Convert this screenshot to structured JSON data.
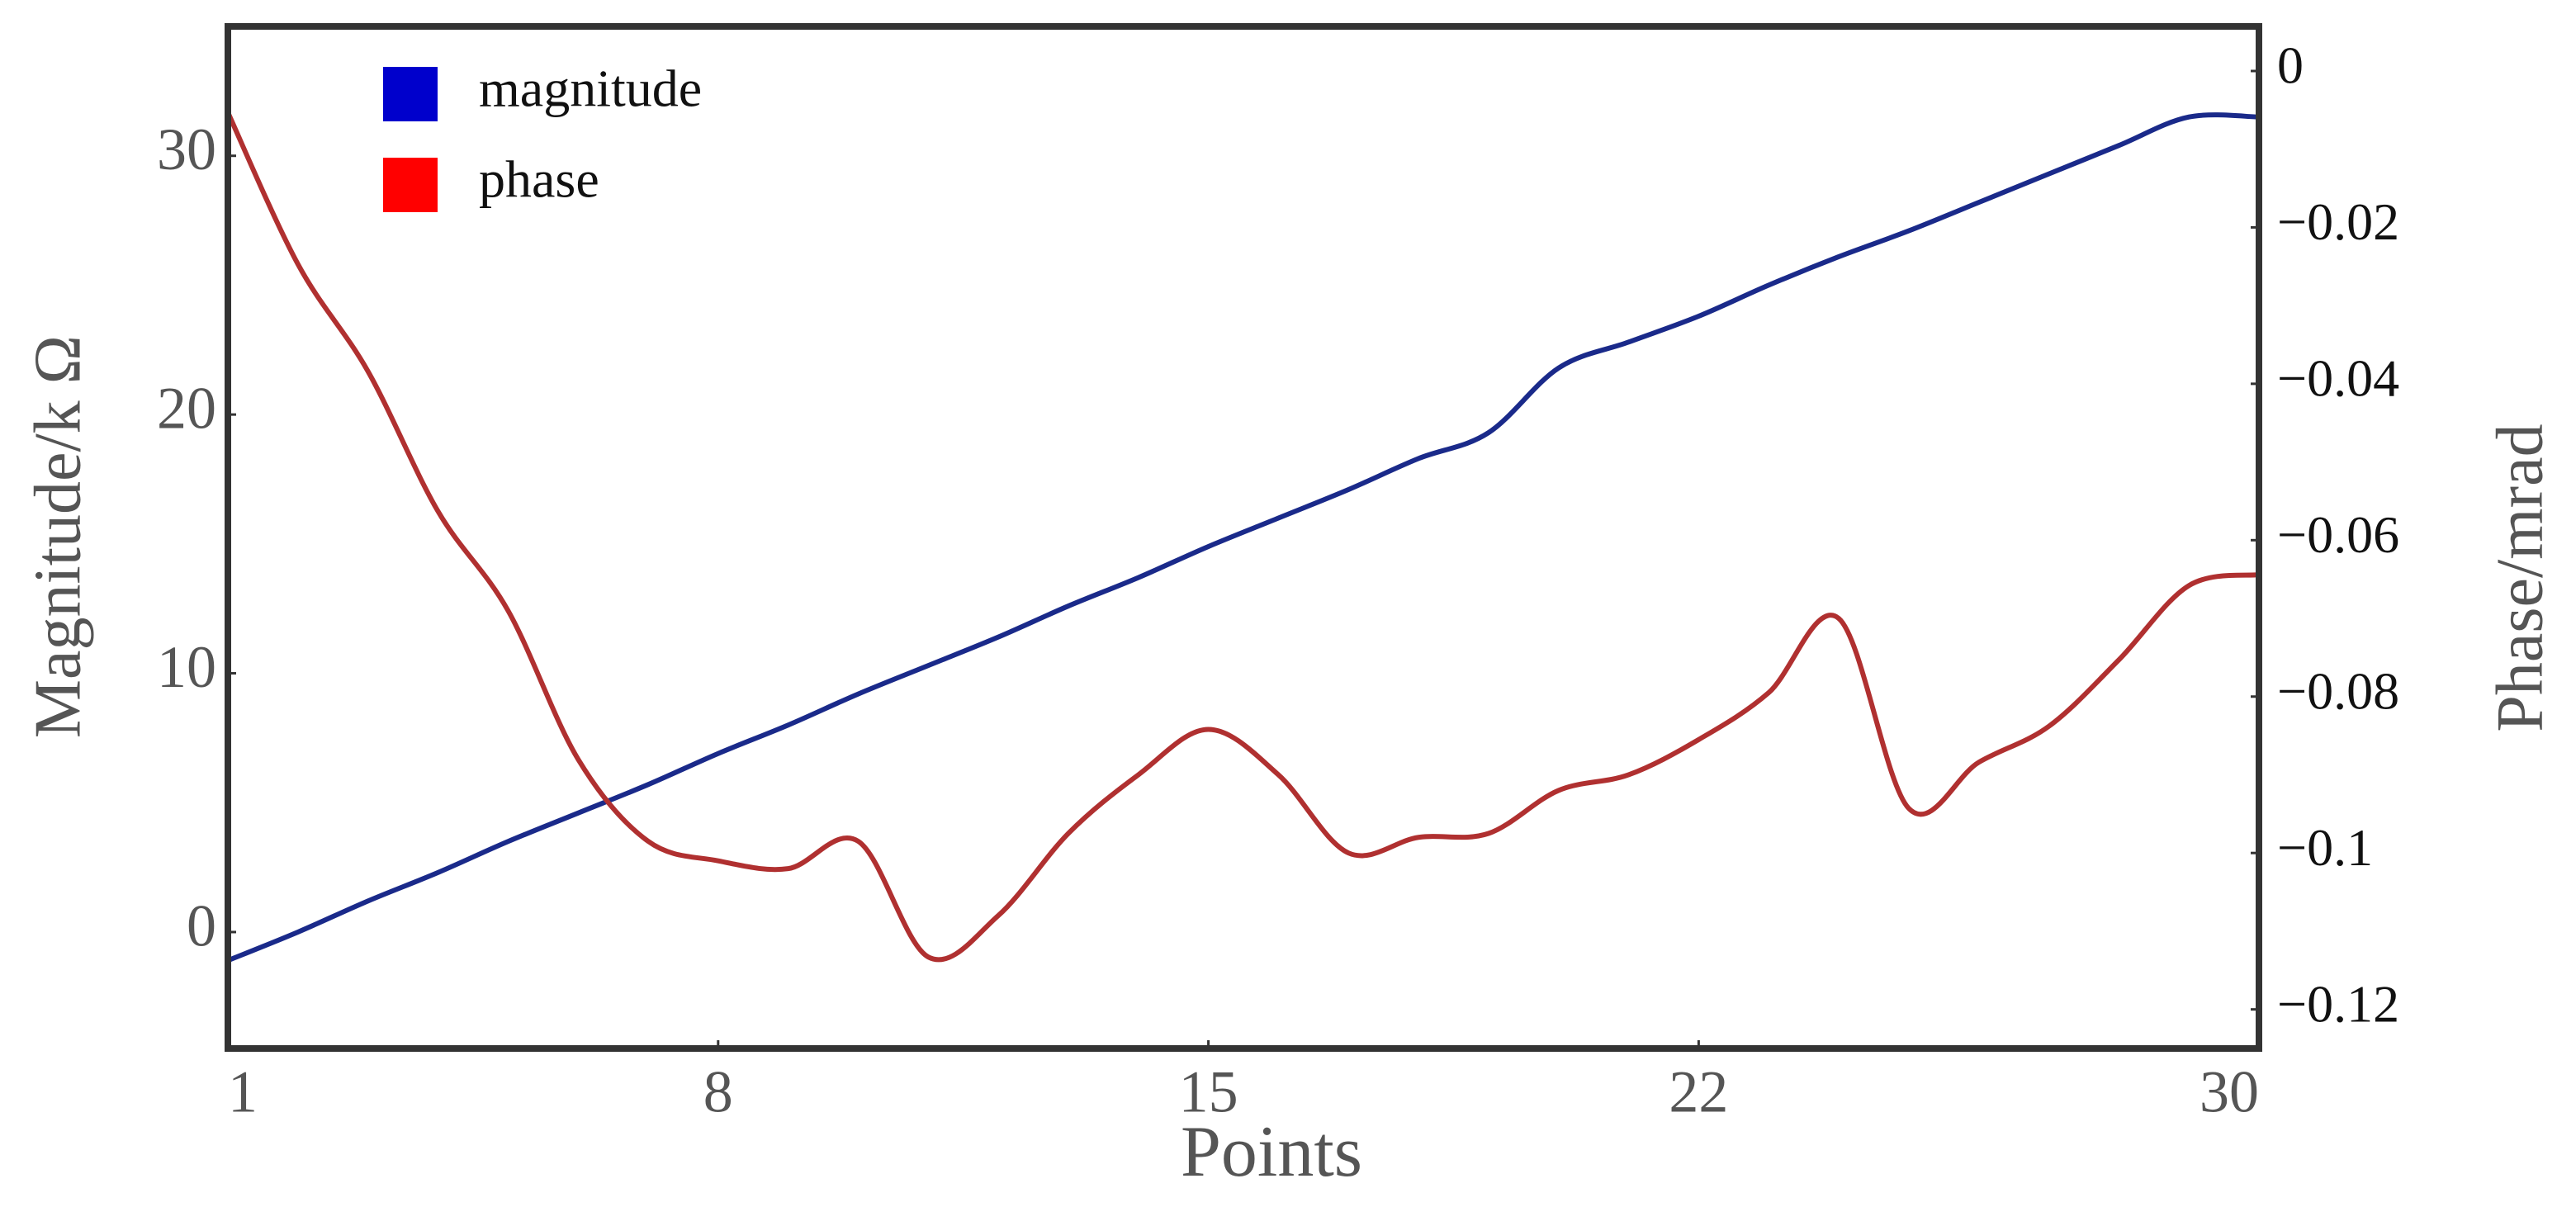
{
  "chart_data": {
    "type": "line",
    "x_label": "Points",
    "y_label": "Magnitude/k Ω",
    "y2_label": "Phase/mrad",
    "x": [
      1,
      2,
      3,
      4,
      5,
      6,
      7,
      8,
      9,
      10,
      11,
      12,
      13,
      14,
      15,
      16,
      17,
      18,
      19,
      20,
      21,
      22,
      23,
      24,
      25,
      26,
      27,
      28,
      29,
      30
    ],
    "xlim": [
      1,
      30
    ],
    "xticks": [
      1,
      8,
      15,
      22,
      30
    ],
    "ylim": [
      -4.5,
      35
    ],
    "yticks": [
      0,
      10,
      20,
      30
    ],
    "y2lim": [
      -0.125,
      0.0057
    ],
    "y2ticks": [
      0,
      {
        "value": -0.02,
        "label": "−0.02"
      },
      {
        "value": -0.04,
        "label": "−0.04"
      },
      {
        "value": -0.06,
        "label": "−0.06"
      },
      {
        "value": -0.08,
        "label": "−0.08"
      },
      {
        "value": -0.1,
        "label": "−0.1"
      },
      {
        "value": -0.12,
        "label": "−0.12"
      }
    ],
    "legend": "upper-left",
    "series": [
      {
        "name": "magnitude",
        "color": "#0000cc",
        "line_color": "#1a2a8a",
        "values": [
          -1.1,
          0.0,
          1.2,
          2.3,
          3.5,
          4.6,
          5.7,
          6.9,
          8.0,
          9.2,
          10.3,
          11.4,
          12.6,
          13.7,
          14.9,
          16.0,
          17.1,
          18.3,
          19.3,
          21.8,
          22.8,
          23.8,
          25.0,
          26.1,
          27.1,
          28.2,
          29.3,
          30.4,
          31.5,
          31.5
        ]
      },
      {
        "name": "phase",
        "color": "#ff0000",
        "line_color": "#b03030",
        "axis": "y2",
        "values": [
          -0.0053,
          -0.0247,
          -0.0384,
          -0.0563,
          -0.069,
          -0.088,
          -0.0985,
          -0.101,
          -0.102,
          -0.0985,
          -0.1133,
          -0.108,
          -0.0975,
          -0.09,
          -0.0842,
          -0.09,
          -0.1,
          -0.098,
          -0.0975,
          -0.092,
          -0.09,
          -0.0855,
          -0.0795,
          -0.07,
          -0.0943,
          -0.0884,
          -0.0838,
          -0.0753,
          -0.0658,
          -0.0644
        ]
      }
    ]
  }
}
